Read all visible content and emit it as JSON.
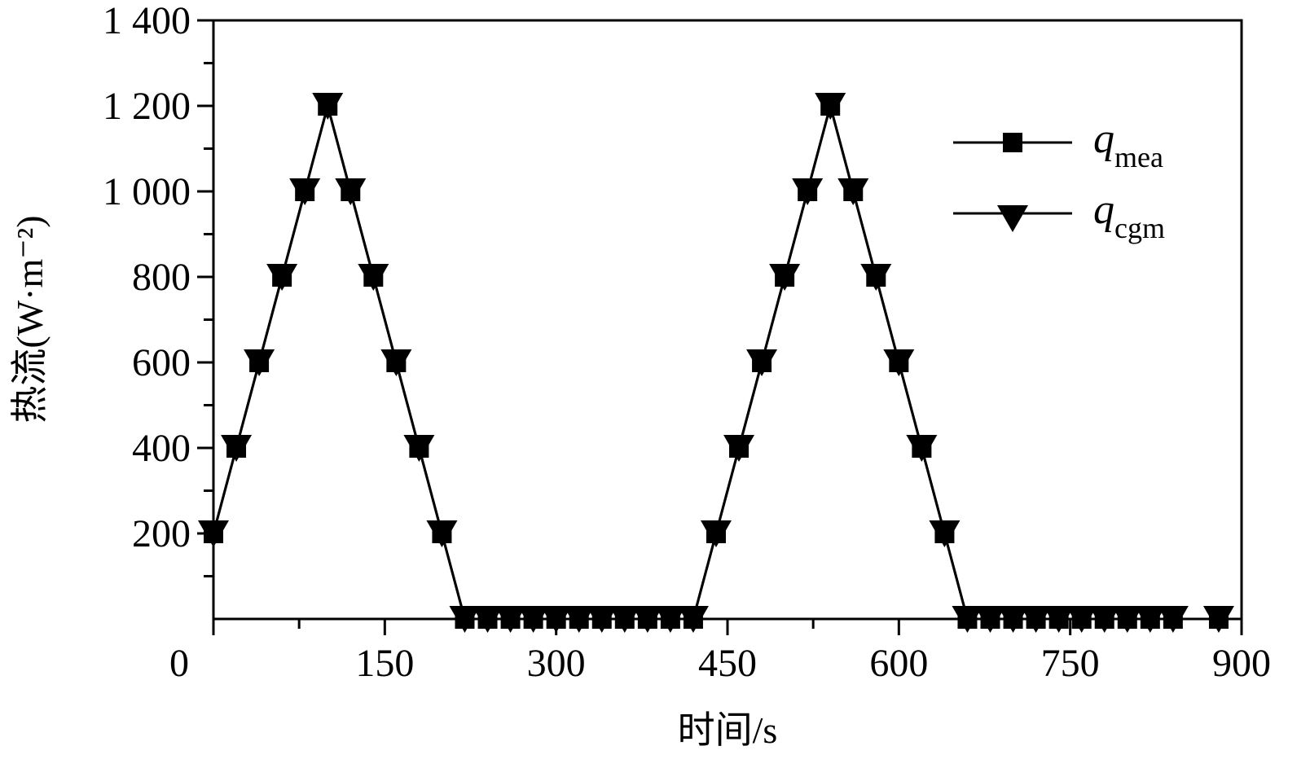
{
  "chart_data": {
    "type": "line",
    "xlabel": "时间/s",
    "ylabel": "热流(W·m⁻²)",
    "x": [
      0,
      20,
      40,
      60,
      80,
      100,
      120,
      140,
      160,
      180,
      200,
      220,
      240,
      260,
      280,
      300,
      320,
      340,
      360,
      380,
      400,
      420,
      440,
      460,
      480,
      500,
      520,
      540,
      560,
      580,
      600,
      620,
      640,
      660,
      680,
      700,
      720,
      740,
      760,
      780,
      800,
      820,
      840,
      860,
      880
    ],
    "series": [
      {
        "name": "qmea",
        "color": "#000000",
        "marker": "square",
        "values": [
          200,
          400,
          600,
          800,
          1000,
          1200,
          1000,
          800,
          600,
          400,
          200,
          0,
          0,
          0,
          0,
          0,
          0,
          0,
          0,
          0,
          0,
          0,
          200,
          400,
          600,
          800,
          1000,
          1200,
          1000,
          800,
          600,
          400,
          200,
          0,
          0,
          0,
          0,
          0,
          0,
          0,
          0,
          0,
          0,
          null,
          0
        ]
      },
      {
        "name": "qcgm",
        "color": "#000000",
        "marker": "triangle-down",
        "values": [
          200,
          400,
          600,
          800,
          1000,
          1200,
          1000,
          800,
          600,
          400,
          200,
          0,
          0,
          0,
          0,
          0,
          0,
          0,
          0,
          0,
          0,
          0,
          200,
          400,
          600,
          800,
          1000,
          1200,
          1000,
          800,
          600,
          400,
          200,
          0,
          0,
          0,
          0,
          0,
          0,
          0,
          0,
          0,
          0,
          null,
          0
        ]
      }
    ],
    "xlim": [
      0,
      900
    ],
    "xticks": [
      0,
      150,
      300,
      450,
      600,
      750,
      900
    ],
    "ylim": [
      0,
      1400
    ],
    "yticks": [
      200,
      400,
      600,
      800,
      {
        "value": 1000,
        "label": "1 000"
      },
      {
        "value": 1200,
        "label": "1 200"
      },
      {
        "value": 1400,
        "label": "1 400"
      }
    ],
    "grid": false,
    "legend": "upper right"
  }
}
